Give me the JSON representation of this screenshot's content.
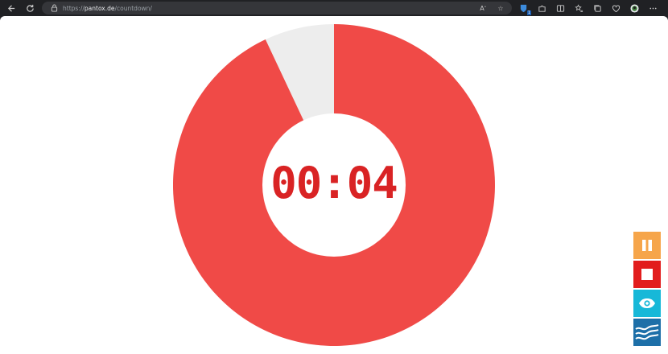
{
  "browser": {
    "url_scheme": "https://",
    "url_host": "pantox.de",
    "url_path": "/countdown/",
    "badge_count": "1"
  },
  "timer": {
    "display": "00:04",
    "remaining_fraction": 0.93,
    "colors": {
      "remaining": "#f04a47",
      "elapsed": "#ededed",
      "text": "#d92324"
    }
  },
  "controls": {
    "pause_color": "#f6a54a",
    "stop_color": "#e21d1d",
    "view_color": "#17b8d8",
    "theme_color": "#1d6fa8"
  }
}
